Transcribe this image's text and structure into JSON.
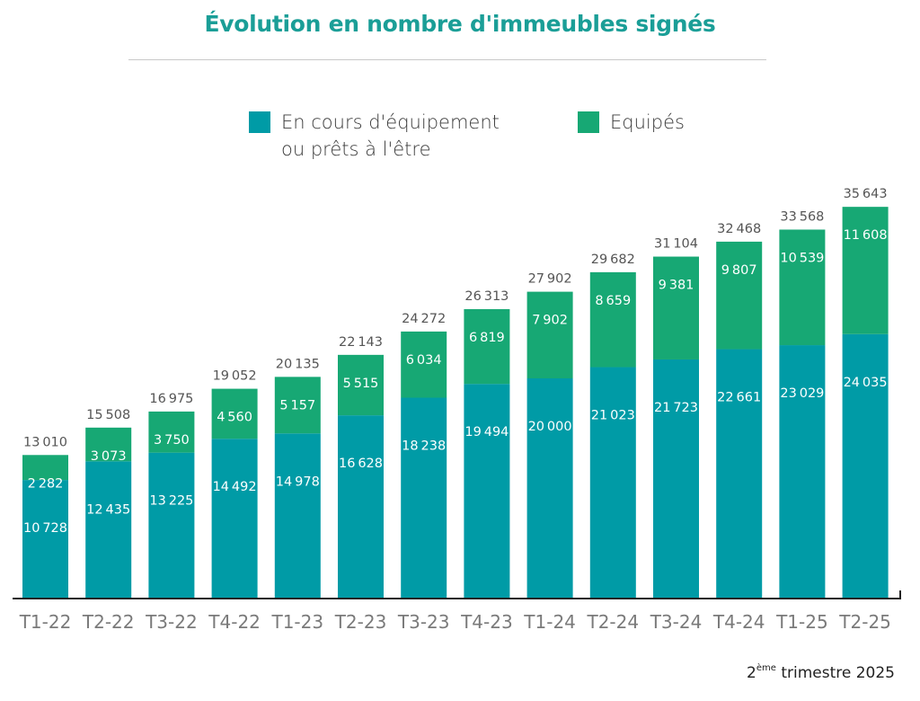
{
  "title": "Évolution en nombre d'immeubles signés",
  "legend": {
    "series0_line1": "En cours d'équipement",
    "series0_line2": "ou prêts à l'être",
    "series1_label": "Equipés"
  },
  "footnote": {
    "ordinal": "2",
    "suffix": "ème",
    "rest": "trimestre 2025"
  },
  "colors": {
    "series0": "#009ba6",
    "series1": "#17a874",
    "total_label": "#555555",
    "axis_label": "#7a7a7a",
    "title": "#1a9e97"
  },
  "chart_data": {
    "type": "bar",
    "stacked": true,
    "title": "Évolution en nombre d'immeubles signés",
    "categories": [
      "T1-22",
      "T2-22",
      "T3-22",
      "T4-22",
      "T1-23",
      "T2-23",
      "T3-23",
      "T4-23",
      "T1-24",
      "T2-24",
      "T3-24",
      "T4-24",
      "T1-25",
      "T2-25"
    ],
    "series": [
      {
        "name": "En cours d'équipement ou prêts à l'être",
        "color": "#009ba6",
        "values": [
          10728,
          12435,
          13225,
          14492,
          14978,
          16628,
          18238,
          19494,
          20000,
          21023,
          21723,
          22661,
          23029,
          24035
        ]
      },
      {
        "name": "Equipés",
        "color": "#17a874",
        "values": [
          2282,
          3073,
          3750,
          4560,
          5157,
          5515,
          6034,
          6819,
          7902,
          8659,
          9381,
          9807,
          10539,
          11608
        ]
      }
    ],
    "totals": [
      13010,
      15508,
      16975,
      19052,
      20135,
      22143,
      24272,
      26313,
      27902,
      29682,
      31104,
      32468,
      33568,
      35643
    ],
    "ylim": [
      0,
      37000
    ],
    "grid": false,
    "legend_position": "top"
  }
}
